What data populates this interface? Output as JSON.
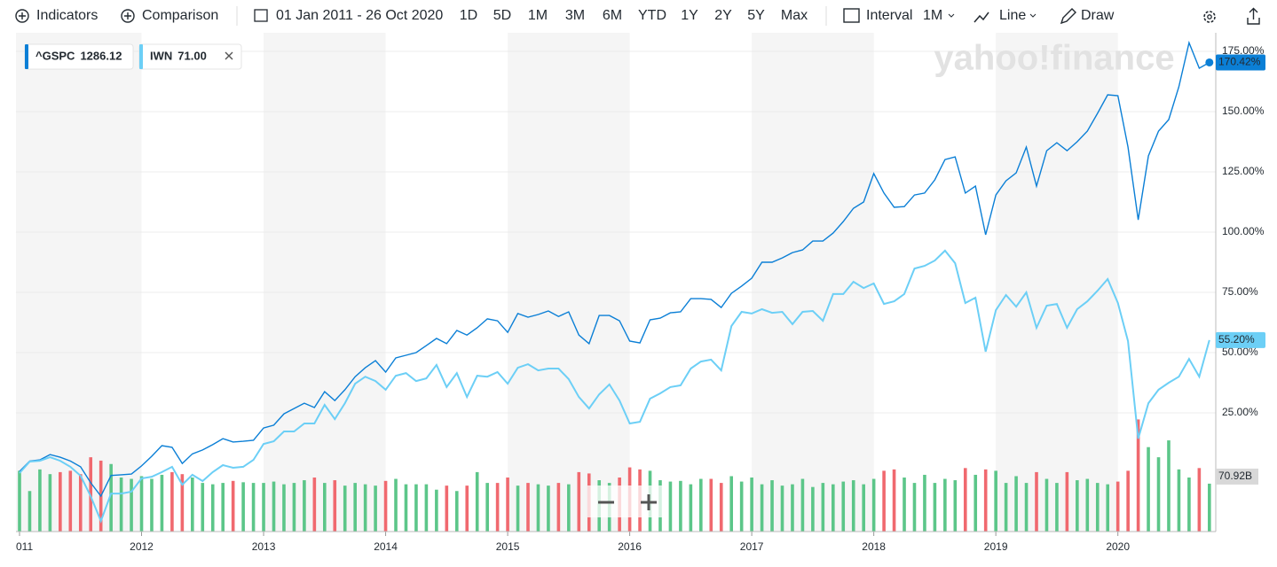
{
  "toolbar": {
    "indicators": "Indicators",
    "comparison": "Comparison",
    "date_range": "01 Jan 2011 - 26 Oct 2020",
    "ranges": [
      "1D",
      "5D",
      "1M",
      "3M",
      "6M",
      "YTD",
      "1Y",
      "2Y",
      "5Y",
      "Max"
    ],
    "interval": "Interval",
    "interval_value": "1M",
    "chart_type": "Line",
    "draw": "Draw"
  },
  "chart_data": {
    "type": "line",
    "watermark": "yahoo!finance",
    "categories": [
      "011",
      null,
      null,
      null,
      null,
      null,
      null,
      null,
      null,
      null,
      null,
      null,
      "2012",
      null,
      null,
      null,
      null,
      null,
      null,
      null,
      null,
      null,
      null,
      null,
      "2013",
      null,
      null,
      null,
      null,
      null,
      null,
      null,
      null,
      null,
      null,
      null,
      "2014",
      null,
      null,
      null,
      null,
      null,
      null,
      null,
      null,
      null,
      null,
      null,
      "2015",
      null,
      null,
      null,
      null,
      null,
      null,
      null,
      null,
      null,
      null,
      null,
      "2016",
      null,
      null,
      null,
      null,
      null,
      null,
      null,
      null,
      null,
      null,
      null,
      "2017",
      null,
      null,
      null,
      null,
      null,
      null,
      null,
      null,
      null,
      null,
      null,
      "2018",
      null,
      null,
      null,
      null,
      null,
      null,
      null,
      null,
      null,
      null,
      null,
      "2019",
      null,
      null,
      null,
      null,
      null,
      null,
      null,
      null,
      null,
      null,
      null,
      "2020",
      null,
      null,
      null,
      null,
      null,
      null,
      null,
      null,
      null
    ],
    "ylim": [
      -24.26,
      182.72
    ],
    "yticks": [
      {
        "value": 25,
        "label": "25.00%"
      },
      {
        "value": 50,
        "label": "50.00%"
      },
      {
        "value": 75,
        "label": "75.00%"
      },
      {
        "value": 100,
        "label": "100.00%"
      },
      {
        "value": 125,
        "label": "125.00%"
      },
      {
        "value": 150,
        "label": "150.00%"
      },
      {
        "value": 175,
        "label": "175.00%"
      }
    ],
    "grid": true,
    "series": [
      {
        "name": "^GSPC",
        "quote": "1286.12",
        "color": "#0b7fd6",
        "label_text_color": "#ffffff",
        "values": [
          0.7,
          5,
          5.5,
          7.7,
          6.6,
          5,
          2.6,
          -4,
          -9.6,
          -1,
          -0.7,
          -0.4,
          3,
          7,
          11.4,
          10.7,
          4,
          8,
          9.6,
          11.8,
          14.3,
          12.9,
          13.2,
          13.6,
          18.7,
          19.9,
          24.6,
          26.8,
          29,
          27.2,
          33.8,
          30.1,
          34.6,
          40,
          43.7,
          46.7,
          41.9,
          47.8,
          48.9,
          50,
          52.9,
          55.9,
          53.7,
          59.2,
          57.3,
          60.3,
          64,
          63.2,
          58.4,
          66.2,
          64.7,
          65.8,
          67.3,
          65,
          66.9,
          57.3,
          53.7,
          65.4,
          65.4,
          63.2,
          54.8,
          54,
          63.6,
          64.3,
          66.5,
          66.9,
          72.4,
          72.4,
          72.1,
          68.7,
          74.6,
          77.6,
          80.9,
          87.5,
          87.5,
          89.3,
          91.5,
          92.6,
          96.3,
          96.3,
          99.6,
          104.4,
          109.9,
          112.5,
          124.3,
          116.2,
          110.3,
          110.6,
          115.4,
          116.2,
          121.7,
          130.1,
          131.2,
          116.2,
          119.1,
          98.9,
          115.4,
          121.3,
          124.6,
          135.3,
          119.1,
          133.8,
          137.1,
          133.8,
          137.5,
          141.9,
          149.3,
          157,
          156.6,
          135.3,
          105.1,
          131.6,
          141.9,
          146.7,
          160.3,
          178.6,
          168,
          170.42
        ],
        "value_labels": [
          null,
          null,
          null,
          null,
          null,
          null,
          null,
          null,
          null,
          null,
          null,
          null,
          null,
          null,
          null,
          null,
          null,
          null,
          null,
          null,
          null,
          null,
          null,
          null,
          null,
          null,
          null,
          null,
          null,
          null,
          null,
          null,
          null,
          null,
          null,
          null,
          null,
          null,
          null,
          null,
          null,
          null,
          null,
          null,
          null,
          null,
          null,
          null,
          null,
          null,
          null,
          null,
          null,
          null,
          null,
          null,
          null,
          null,
          null,
          null,
          null,
          null,
          null,
          null,
          null,
          null,
          null,
          null,
          null,
          null,
          null,
          null,
          null,
          null,
          null,
          null,
          null,
          null,
          null,
          null,
          null,
          null,
          null,
          null,
          null,
          null,
          null,
          null,
          null,
          null,
          null,
          null,
          null,
          null,
          null,
          null,
          null,
          null,
          null,
          null,
          null,
          null,
          null,
          null,
          null,
          null,
          null,
          null,
          null,
          null,
          null,
          null,
          null,
          null,
          null,
          null,
          null,
          "170.42%"
        ]
      },
      {
        "name": "IWN",
        "quote": "71.00",
        "color": "#6ccff6",
        "label_text_color": "#1a1a1a",
        "values": [
          0,
          4.8,
          5.1,
          6.6,
          5.1,
          2.6,
          -1.1,
          -9.6,
          -19.9,
          -8.5,
          -8.5,
          -7.7,
          -2.2,
          -1.5,
          0.4,
          2.6,
          -4.8,
          -0.7,
          -3.3,
          0.4,
          3.3,
          2.2,
          2.6,
          5.5,
          12.1,
          13.2,
          17.3,
          17.3,
          20.6,
          20.6,
          28.3,
          22.4,
          29,
          37.1,
          40,
          38.2,
          34.6,
          40.4,
          41.5,
          38.2,
          39.3,
          44.9,
          35.7,
          41.5,
          31.6,
          40.4,
          40,
          41.9,
          37.1,
          43.7,
          45.2,
          42.6,
          43.4,
          43.4,
          39,
          31.6,
          26.8,
          32.7,
          36.8,
          30.1,
          20.6,
          21.3,
          30.9,
          33.1,
          35.7,
          36.4,
          43.4,
          46.3,
          47.1,
          42.6,
          61,
          66.9,
          66.2,
          68,
          66.5,
          66.9,
          61.8,
          66.9,
          67.3,
          63.2,
          74.3,
          74.3,
          79.4,
          76.8,
          78.7,
          70.2,
          71.3,
          74.3,
          84.9,
          86,
          88.2,
          92.3,
          87.1,
          70.6,
          72.8,
          50.4,
          67.6,
          73.9,
          69.1,
          75,
          60.3,
          69.5,
          70.2,
          60.3,
          68,
          71.3,
          75.7,
          80.5,
          70.6,
          54.8,
          14.3,
          29,
          34.6,
          37.5,
          40,
          47.4,
          40,
          55.2
        ],
        "value_labels": [
          null,
          null,
          null,
          null,
          null,
          null,
          null,
          null,
          null,
          null,
          null,
          null,
          null,
          null,
          null,
          null,
          null,
          null,
          null,
          null,
          null,
          null,
          null,
          null,
          null,
          null,
          null,
          null,
          null,
          null,
          null,
          null,
          null,
          null,
          null,
          null,
          null,
          null,
          null,
          null,
          null,
          null,
          null,
          null,
          null,
          null,
          null,
          null,
          null,
          null,
          null,
          null,
          null,
          null,
          null,
          null,
          null,
          null,
          null,
          null,
          null,
          null,
          null,
          null,
          null,
          null,
          null,
          null,
          null,
          null,
          null,
          null,
          null,
          null,
          null,
          null,
          null,
          null,
          null,
          null,
          null,
          null,
          null,
          null,
          null,
          null,
          null,
          null,
          null,
          null,
          null,
          null,
          null,
          null,
          null,
          null,
          null,
          null,
          null,
          null,
          null,
          null,
          null,
          null,
          null,
          null,
          null,
          null,
          null,
          null,
          null,
          null,
          null,
          null,
          null,
          null,
          null,
          "55.20%"
        ]
      }
    ],
    "volume": {
      "up_color": "#5cc689",
      "down_color": "#f0696f",
      "ylim": [
        0,
        240
      ],
      "values": [
        90,
        60,
        92,
        85,
        88,
        90,
        85,
        110,
        105,
        100,
        80,
        78,
        82,
        78,
        84,
        88,
        85,
        80,
        72,
        70,
        72,
        75,
        73,
        72,
        72,
        74,
        70,
        72,
        76,
        80,
        72,
        76,
        68,
        72,
        70,
        68,
        75,
        78,
        70,
        70,
        70,
        62,
        68,
        60,
        68,
        88,
        72,
        72,
        80,
        68,
        72,
        70,
        68,
        72,
        70,
        88,
        86,
        76,
        72,
        80,
        95,
        92,
        90,
        76,
        74,
        75,
        70,
        78,
        78,
        72,
        82,
        74,
        80,
        70,
        76,
        68,
        70,
        78,
        66,
        72,
        70,
        74,
        76,
        70,
        78,
        90,
        92,
        80,
        72,
        84,
        72,
        78,
        76,
        94,
        84,
        92,
        90,
        72,
        82,
        72,
        88,
        78,
        72,
        88,
        76,
        78,
        72,
        70,
        74,
        90,
        166,
        125,
        110,
        135,
        92,
        80,
        94,
        70.92
      ],
      "value_labels": [
        null,
        null,
        null,
        null,
        null,
        null,
        null,
        null,
        null,
        null,
        null,
        null,
        null,
        null,
        null,
        null,
        null,
        null,
        null,
        null,
        null,
        null,
        null,
        null,
        null,
        null,
        null,
        null,
        null,
        null,
        null,
        null,
        null,
        null,
        null,
        null,
        null,
        null,
        null,
        null,
        null,
        null,
        null,
        null,
        null,
        null,
        null,
        null,
        null,
        null,
        null,
        null,
        null,
        null,
        null,
        null,
        null,
        null,
        null,
        null,
        null,
        null,
        null,
        null,
        null,
        null,
        null,
        null,
        null,
        null,
        null,
        null,
        null,
        null,
        null,
        null,
        null,
        null,
        null,
        null,
        null,
        null,
        null,
        null,
        null,
        null,
        null,
        null,
        null,
        null,
        null,
        null,
        null,
        null,
        null,
        null,
        null,
        null,
        null,
        null,
        null,
        null,
        null,
        null,
        null,
        null,
        null,
        null,
        null,
        null,
        null,
        null,
        null,
        null,
        null,
        null,
        null,
        "70.92B"
      ]
    }
  }
}
